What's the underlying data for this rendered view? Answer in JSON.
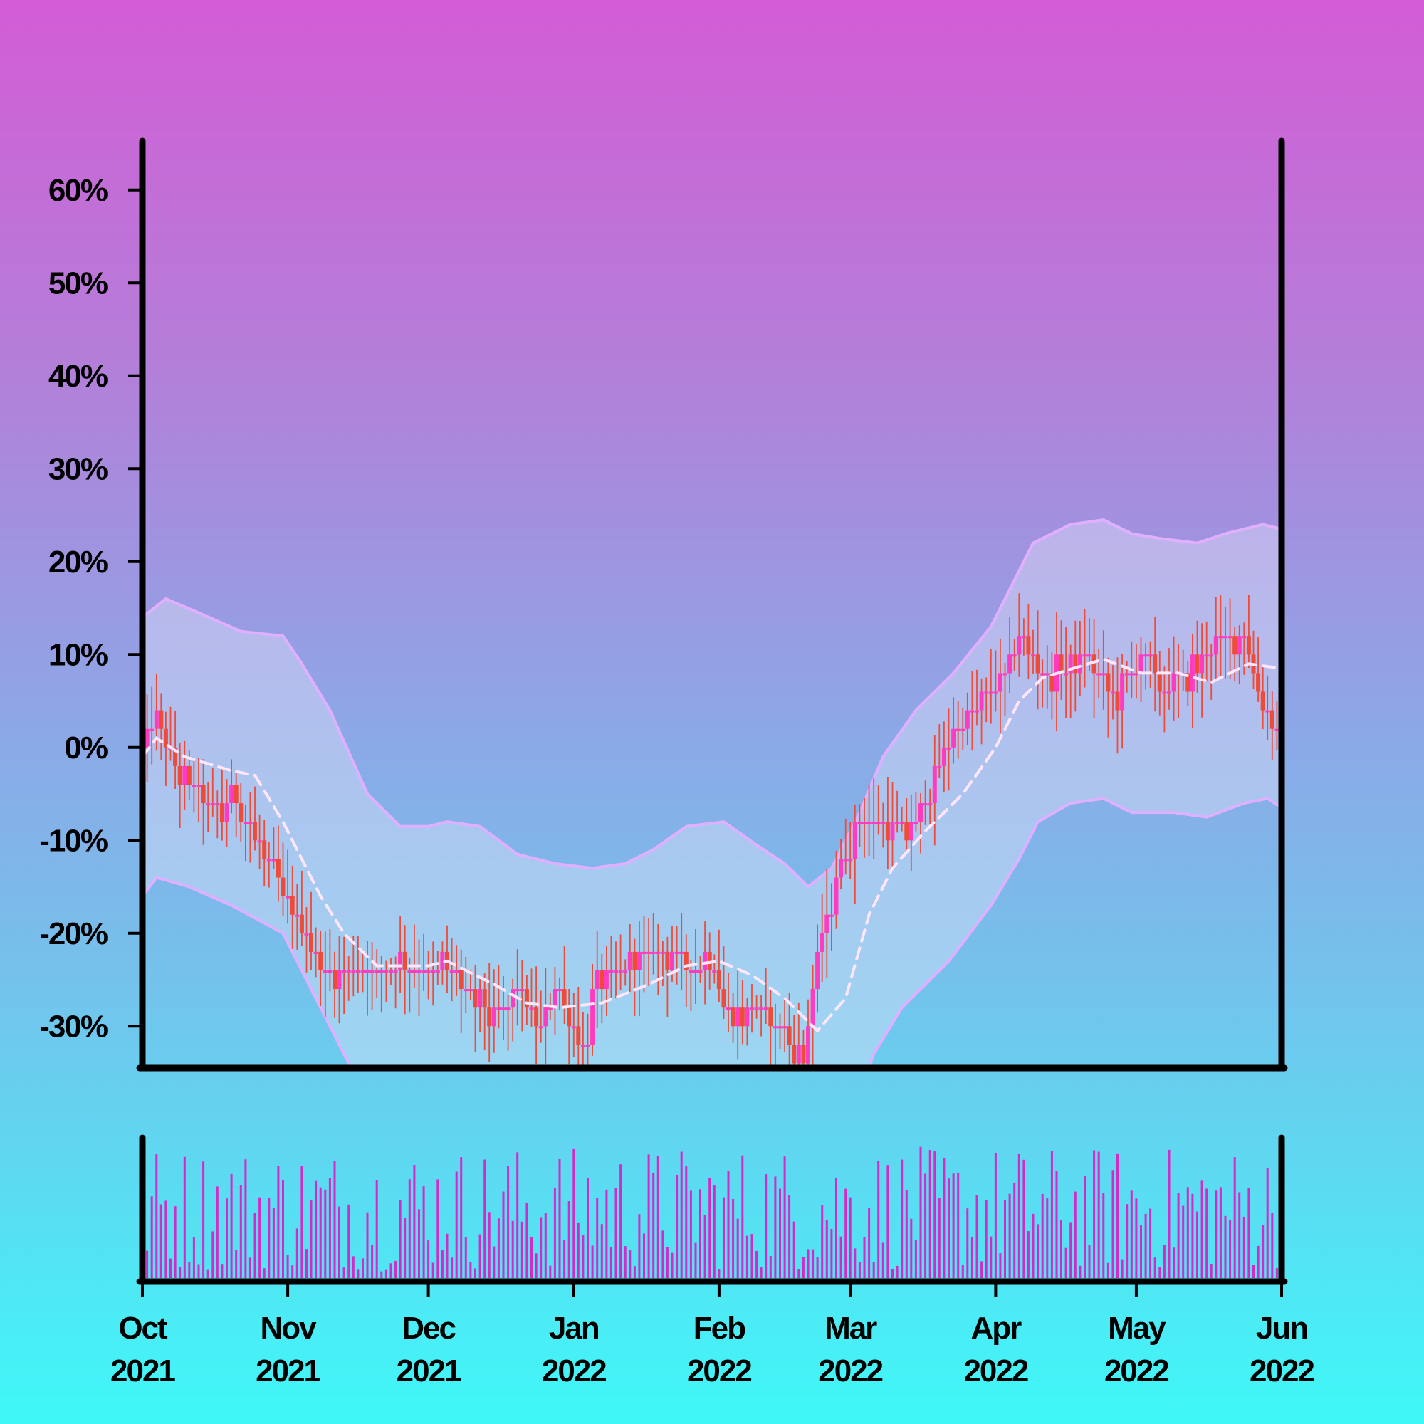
{
  "chart_data": {
    "type": "candlestick",
    "x_range": [
      "2021-10-01",
      "2022-06-01"
    ],
    "ylim": [
      -34.5,
      65.5
    ],
    "y_ticks": [
      60,
      50,
      40,
      30,
      20,
      10,
      0,
      -10,
      -20,
      -30
    ],
    "y_tick_labels": [
      "60%",
      "50%",
      "40%",
      "30%",
      "20%",
      "10%",
      "0%",
      "-10%",
      "-20%",
      "-30%"
    ],
    "x_ticks": [
      "2021-10-01",
      "2021-11-01",
      "2021-12-01",
      "2022-01-01",
      "2022-02-01",
      "2022-03-01",
      "2022-04-01",
      "2022-05-01",
      "2022-06-01"
    ],
    "x_tick_labels": [
      {
        "month": "Oct",
        "year": "2021"
      },
      {
        "month": "Nov",
        "year": "2021"
      },
      {
        "month": "Dec",
        "year": "2021"
      },
      {
        "month": "Jan",
        "year": "2022"
      },
      {
        "month": "Feb",
        "year": "2022"
      },
      {
        "month": "Mar",
        "year": "2022"
      },
      {
        "month": "Apr",
        "year": "2022"
      },
      {
        "month": "May",
        "year": "2022"
      },
      {
        "month": "Jun",
        "year": "2022"
      }
    ],
    "close_path": [
      [
        "2021-10-01",
        0
      ],
      [
        "2021-10-04",
        3
      ],
      [
        "2021-10-08",
        -2
      ],
      [
        "2021-10-13",
        -5
      ],
      [
        "2021-10-18",
        -7
      ],
      [
        "2021-10-21",
        -5
      ],
      [
        "2021-10-26",
        -11
      ],
      [
        "2021-10-31",
        -16
      ],
      [
        "2021-11-05",
        -20
      ],
      [
        "2021-11-10",
        -25
      ],
      [
        "2021-11-15",
        -24
      ],
      [
        "2021-11-20",
        -24
      ],
      [
        "2021-11-25",
        -22
      ],
      [
        "2021-12-01",
        -24
      ],
      [
        "2021-12-05",
        -23
      ],
      [
        "2021-12-10",
        -27
      ],
      [
        "2021-12-15",
        -29
      ],
      [
        "2021-12-20",
        -26
      ],
      [
        "2021-12-25",
        -30
      ],
      [
        "2021-12-28",
        -25
      ],
      [
        "2022-01-03",
        -33
      ],
      [
        "2022-01-06",
        -25
      ],
      [
        "2022-01-12",
        -24
      ],
      [
        "2022-01-18",
        -22
      ],
      [
        "2022-01-24",
        -23
      ],
      [
        "2022-01-31",
        -23
      ],
      [
        "2022-02-03",
        -29
      ],
      [
        "2022-02-08",
        -28
      ],
      [
        "2022-02-13",
        -30
      ],
      [
        "2022-02-19",
        -33
      ],
      [
        "2022-02-21",
        -25
      ],
      [
        "2022-02-26",
        -14
      ],
      [
        "2022-03-03",
        -7
      ],
      [
        "2022-03-08",
        -8
      ],
      [
        "2022-03-12",
        -10
      ],
      [
        "2022-03-16",
        -7
      ],
      [
        "2022-03-22",
        1
      ],
      [
        "2022-03-28",
        4
      ],
      [
        "2022-04-03",
        8
      ],
      [
        "2022-04-06",
        13
      ],
      [
        "2022-04-10",
        8
      ],
      [
        "2022-04-15",
        8
      ],
      [
        "2022-04-21",
        10
      ],
      [
        "2022-04-27",
        5
      ],
      [
        "2022-05-02",
        10
      ],
      [
        "2022-05-07",
        6
      ],
      [
        "2022-05-12",
        8
      ],
      [
        "2022-05-17",
        11
      ],
      [
        "2022-05-24",
        12
      ],
      [
        "2022-05-28",
        4
      ],
      [
        "2022-06-01",
        2
      ]
    ],
    "moving_average": [
      [
        "2021-10-01",
        -1
      ],
      [
        "2021-10-04",
        1
      ],
      [
        "2021-10-10",
        -1
      ],
      [
        "2021-10-20",
        -2.5
      ],
      [
        "2021-10-25",
        -3
      ],
      [
        "2021-10-31",
        -8
      ],
      [
        "2021-11-08",
        -16
      ],
      [
        "2021-11-13",
        -20
      ],
      [
        "2021-11-20",
        -23.5
      ],
      [
        "2021-12-01",
        -23.5
      ],
      [
        "2021-12-05",
        -23
      ],
      [
        "2021-12-15",
        -25.5
      ],
      [
        "2021-12-22",
        -27.5
      ],
      [
        "2021-12-29",
        -28
      ],
      [
        "2022-01-07",
        -27.5
      ],
      [
        "2022-01-17",
        -25.5
      ],
      [
        "2022-01-25",
        -23.5
      ],
      [
        "2022-02-01",
        -23
      ],
      [
        "2022-02-08",
        -24.5
      ],
      [
        "2022-02-15",
        -27
      ],
      [
        "2022-02-22",
        -30.5
      ],
      [
        "2022-02-28",
        -27
      ],
      [
        "2022-03-05",
        -18
      ],
      [
        "2022-03-10",
        -13
      ],
      [
        "2022-03-17",
        -9
      ],
      [
        "2022-03-25",
        -5
      ],
      [
        "2022-04-01",
        0
      ],
      [
        "2022-04-06",
        5
      ],
      [
        "2022-04-11",
        7.5
      ],
      [
        "2022-04-24",
        9.5
      ],
      [
        "2022-05-02",
        8
      ],
      [
        "2022-05-10",
        8
      ],
      [
        "2022-05-17",
        7
      ],
      [
        "2022-05-25",
        9
      ],
      [
        "2022-06-01",
        8.5
      ]
    ],
    "upper_band": [
      [
        "2021-10-01",
        14
      ],
      [
        "2021-10-06",
        16
      ],
      [
        "2021-10-13",
        14.5
      ],
      [
        "2021-10-22",
        12.5
      ],
      [
        "2021-10-31",
        12
      ],
      [
        "2021-11-04",
        9
      ],
      [
        "2021-11-10",
        4
      ],
      [
        "2021-11-18",
        -5
      ],
      [
        "2021-11-25",
        -8.5
      ],
      [
        "2021-12-01",
        -8.5
      ],
      [
        "2021-12-05",
        -8
      ],
      [
        "2021-12-12",
        -8.5
      ],
      [
        "2021-12-20",
        -11.5
      ],
      [
        "2021-12-28",
        -12.5
      ],
      [
        "2022-01-05",
        -13
      ],
      [
        "2022-01-12",
        -12.5
      ],
      [
        "2022-01-18",
        -11
      ],
      [
        "2022-01-25",
        -8.5
      ],
      [
        "2022-02-02",
        -8
      ],
      [
        "2022-02-09",
        -10.5
      ],
      [
        "2022-02-15",
        -12.5
      ],
      [
        "2022-02-20",
        -15
      ],
      [
        "2022-02-25",
        -13
      ],
      [
        "2022-03-03",
        -7
      ],
      [
        "2022-03-08",
        -1
      ],
      [
        "2022-03-15",
        4
      ],
      [
        "2022-03-23",
        8
      ],
      [
        "2022-03-31",
        13
      ],
      [
        "2022-04-05",
        18
      ],
      [
        "2022-04-09",
        22
      ],
      [
        "2022-04-17",
        24
      ],
      [
        "2022-04-24",
        24.5
      ],
      [
        "2022-04-30",
        23
      ],
      [
        "2022-05-06",
        22.5
      ],
      [
        "2022-05-14",
        22
      ],
      [
        "2022-05-20",
        23
      ],
      [
        "2022-05-28",
        24
      ],
      [
        "2022-06-01",
        23.5
      ]
    ],
    "lower_band": [
      [
        "2021-10-01",
        -16
      ],
      [
        "2021-10-04",
        -14
      ],
      [
        "2021-10-11",
        -15
      ],
      [
        "2021-10-20",
        -17
      ],
      [
        "2021-10-31",
        -20
      ],
      [
        "2021-11-08",
        -28
      ],
      [
        "2021-11-14",
        -34
      ],
      [
        "2021-11-20",
        -40
      ],
      [
        "2022-02-25",
        -40
      ],
      [
        "2022-03-01",
        -40
      ],
      [
        "2022-03-06",
        -33
      ],
      [
        "2022-03-12",
        -28
      ],
      [
        "2022-03-22",
        -23
      ],
      [
        "2022-03-31",
        -17
      ],
      [
        "2022-04-06",
        -12
      ],
      [
        "2022-04-10",
        -8
      ],
      [
        "2022-04-17",
        -6
      ],
      [
        "2022-04-24",
        -5.5
      ],
      [
        "2022-04-30",
        -7
      ],
      [
        "2022-05-09",
        -7
      ],
      [
        "2022-05-16",
        -7.5
      ],
      [
        "2022-05-24",
        -6
      ],
      [
        "2022-05-29",
        -5.5
      ],
      [
        "2022-06-01",
        -6.5
      ]
    ],
    "colors": {
      "up_candle": "#ff3cbf",
      "down_candle": "#f04a38",
      "band_fill": "#e6e6fa",
      "band_line": "#e0b0ff",
      "moving_average": "#ffe6ff",
      "volume": "#d42ac8",
      "axis": "#000000"
    }
  }
}
